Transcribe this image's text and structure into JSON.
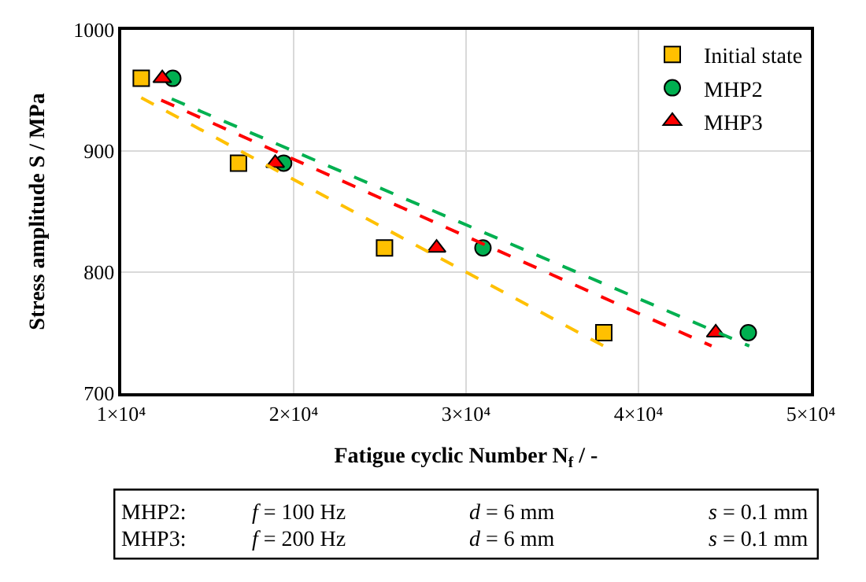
{
  "chart_data": {
    "type": "scatter",
    "xlabel": "Fatigue cyclic Number N$_{f}$ / -",
    "ylabel": "Stress amplitude S / MPa",
    "xlim": [
      10000,
      50000
    ],
    "xticks": [
      {
        "value": 10000,
        "label": "1×10⁴"
      },
      {
        "value": 20000,
        "label": "2×10⁴"
      },
      {
        "value": 30000,
        "label": "3×10⁴"
      },
      {
        "value": 40000,
        "label": "4×10⁴"
      },
      {
        "value": 50000,
        "label": "5×10⁴"
      }
    ],
    "ylim": [
      700,
      1000
    ],
    "yticks": [
      700,
      800,
      900,
      1000
    ],
    "grid": true,
    "legend": "top right",
    "series": [
      {
        "name": "Initial state",
        "color": "#ffc000",
        "marker": "square",
        "x": [
          11160,
          16800,
          25270,
          37990
        ],
        "values": [
          960,
          890,
          820,
          750
        ]
      },
      {
        "name": "MHP2",
        "color": "#00b050",
        "marker": "circle",
        "x": [
          12990,
          19420,
          30980,
          46370
        ],
        "values": [
          960,
          890,
          820,
          750
        ]
      },
      {
        "name": "MHP3",
        "color": "#ff0000",
        "marker": "triangle",
        "x": [
          12380,
          18930,
          28290,
          44480
        ],
        "values": [
          960,
          890,
          820,
          750
        ]
      },
      {
        "type": "line",
        "color": "#ffc000",
        "line_style": "dashed",
        "x": [
          11160,
          37990
        ],
        "values": [
          944,
          739
        ]
      },
      {
        "type": "line",
        "color": "#ff0000",
        "line_style": "dashed",
        "x": [
          12320,
          44240
        ],
        "values": [
          942,
          739
        ]
      },
      {
        "type": "line",
        "color": "#00b050",
        "line_style": "dashed",
        "x": [
          12930,
          46430
        ],
        "values": [
          943,
          739
        ]
      }
    ],
    "annotations": [
      "MHP2:",
      "f = 100 Hz",
      "d = 6 mm",
      "s = 0.1 mm",
      "MHP3:",
      "f = 200 Hz",
      "d = 6 mm",
      "s = 0.1 mm"
    ]
  }
}
